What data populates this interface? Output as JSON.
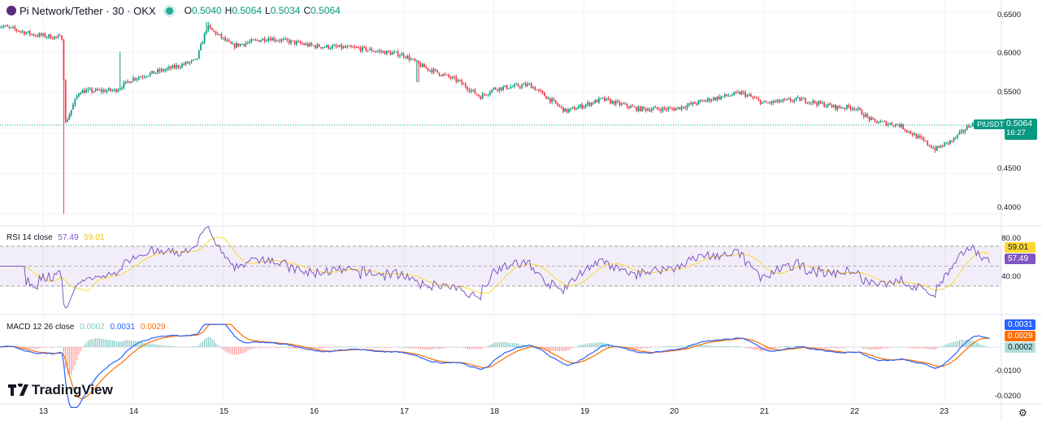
{
  "header": {
    "symbol": "Pi Network/Tether · 30 · OKX",
    "ohlc": [
      {
        "k": "O",
        "v": "0.5040"
      },
      {
        "k": "H",
        "v": "0.5064"
      },
      {
        "k": "L",
        "v": "0.5034"
      },
      {
        "k": "C",
        "v": "0.5064"
      }
    ]
  },
  "price_axis": {
    "ticks": [
      "0.6500",
      "0.6000",
      "0.5500",
      "0.5000",
      "0.4500",
      "0.4000"
    ],
    "current_symbol": "PIUSDT",
    "current_price": "0.5064",
    "countdown": "16:27"
  },
  "rsi": {
    "label": "RSI 14 close",
    "value": "57.49",
    "ma_value": "59.01",
    "ticks": [
      "80.00",
      "40.00"
    ]
  },
  "macd": {
    "label": "MACD 12 26 close",
    "hist": "0.0002",
    "macd": "0.0031",
    "signal": "0.0029",
    "ticks": [
      "-0.0100",
      "-0.0200"
    ]
  },
  "time_axis": [
    "13",
    "14",
    "15",
    "16",
    "17",
    "18",
    "19",
    "20",
    "21",
    "22",
    "23"
  ],
  "branding": "TradingView",
  "colors": {
    "up": "#089981",
    "down": "#f23645",
    "rsi": "#7e57c2",
    "rsi_ma": "#fdd835",
    "macd": "#2962ff",
    "signal": "#ff6d00"
  },
  "chart_data": {
    "type": "candlestick",
    "pair": "PIUSDT",
    "interval": "30",
    "price_path": [
      [
        12.5,
        0.634
      ],
      [
        12.9,
        0.622
      ],
      [
        13.22,
        0.618
      ],
      [
        13.24,
        0.51
      ],
      [
        13.4,
        0.552
      ],
      [
        13.8,
        0.553
      ],
      [
        14.0,
        0.568
      ],
      [
        14.4,
        0.58
      ],
      [
        14.7,
        0.59
      ],
      [
        14.82,
        0.632
      ],
      [
        15.1,
        0.608
      ],
      [
        15.5,
        0.618
      ],
      [
        16.0,
        0.608
      ],
      [
        16.5,
        0.605
      ],
      [
        17.0,
        0.597
      ],
      [
        17.2,
        0.583
      ],
      [
        17.6,
        0.565
      ],
      [
        17.85,
        0.545
      ],
      [
        18.0,
        0.555
      ],
      [
        18.4,
        0.56
      ],
      [
        18.8,
        0.527
      ],
      [
        19.2,
        0.542
      ],
      [
        19.6,
        0.53
      ],
      [
        20.0,
        0.53
      ],
      [
        20.4,
        0.542
      ],
      [
        20.75,
        0.55
      ],
      [
        21.0,
        0.537
      ],
      [
        21.4,
        0.542
      ],
      [
        21.8,
        0.532
      ],
      [
        22.0,
        0.532
      ],
      [
        22.2,
        0.515
      ],
      [
        22.5,
        0.51
      ],
      [
        22.9,
        0.48
      ],
      [
        23.1,
        0.492
      ],
      [
        23.3,
        0.512
      ],
      [
        23.5,
        0.5064
      ]
    ],
    "ylim": [
      0.385,
      0.665
    ]
  }
}
